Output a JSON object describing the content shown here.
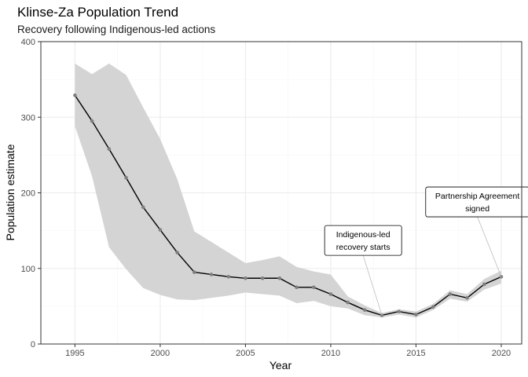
{
  "chart_data": {
    "type": "line",
    "title": "Klinse-Za Population Trend",
    "subtitle": "Recovery following Indigenous-led actions",
    "xlabel": "Year",
    "ylabel": "Population estimate",
    "xlim": [
      1993.0,
      2021.2
    ],
    "ylim": [
      0,
      400
    ],
    "x_ticks": [
      1995,
      2000,
      2005,
      2010,
      2015,
      2020
    ],
    "y_ticks": [
      0,
      100,
      200,
      300,
      400
    ],
    "grid": true,
    "legend": "none",
    "series": [
      {
        "x": [
          1995,
          1996,
          1997,
          1998,
          1999,
          2000,
          2001,
          2002,
          2003,
          2004,
          2005,
          2006,
          2007,
          2008,
          2009,
          2010,
          2011,
          2012,
          2013,
          2014,
          2015,
          2016,
          2017,
          2018,
          2019,
          2020
        ],
        "values": [
          329,
          295,
          258,
          220,
          181,
          151,
          121,
          95,
          92,
          89,
          87,
          87,
          87,
          75,
          75,
          66,
          55,
          45,
          38,
          43,
          39,
          49,
          66,
          61,
          79,
          89
        ],
        "lower": [
          288,
          222,
          128,
          99,
          74,
          65,
          59,
          58,
          61,
          64,
          68,
          66,
          64,
          54,
          57,
          50,
          47,
          38,
          35,
          39,
          35,
          45,
          60,
          56,
          72,
          80
        ],
        "upper": [
          371,
          357,
          371,
          356,
          313,
          271,
          218,
          149,
          135,
          121,
          107,
          111,
          116,
          102,
          96,
          92,
          63,
          51,
          41,
          46,
          43,
          53,
          71,
          66,
          86,
          97
        ]
      }
    ],
    "annotations": [
      {
        "lines": [
          "Indigenous-led",
          "recovery starts"
        ],
        "target_x": 2013,
        "target_y": 38,
        "label_x": 2011.9,
        "label_y": 137
      },
      {
        "lines": [
          "Partnership Agreement",
          "signed"
        ],
        "target_x": 2020,
        "target_y": 89,
        "label_x": 2018.6,
        "label_y": 188
      }
    ],
    "colors": {
      "line": "#000000",
      "point": "#7f7f7f",
      "ribbon": "#d4d4d4",
      "grid_major": "#ebebeb",
      "grid_minor": "#f5f5f5",
      "panel_border": "#333333",
      "annotation_connector": "#bdbdbd"
    }
  }
}
